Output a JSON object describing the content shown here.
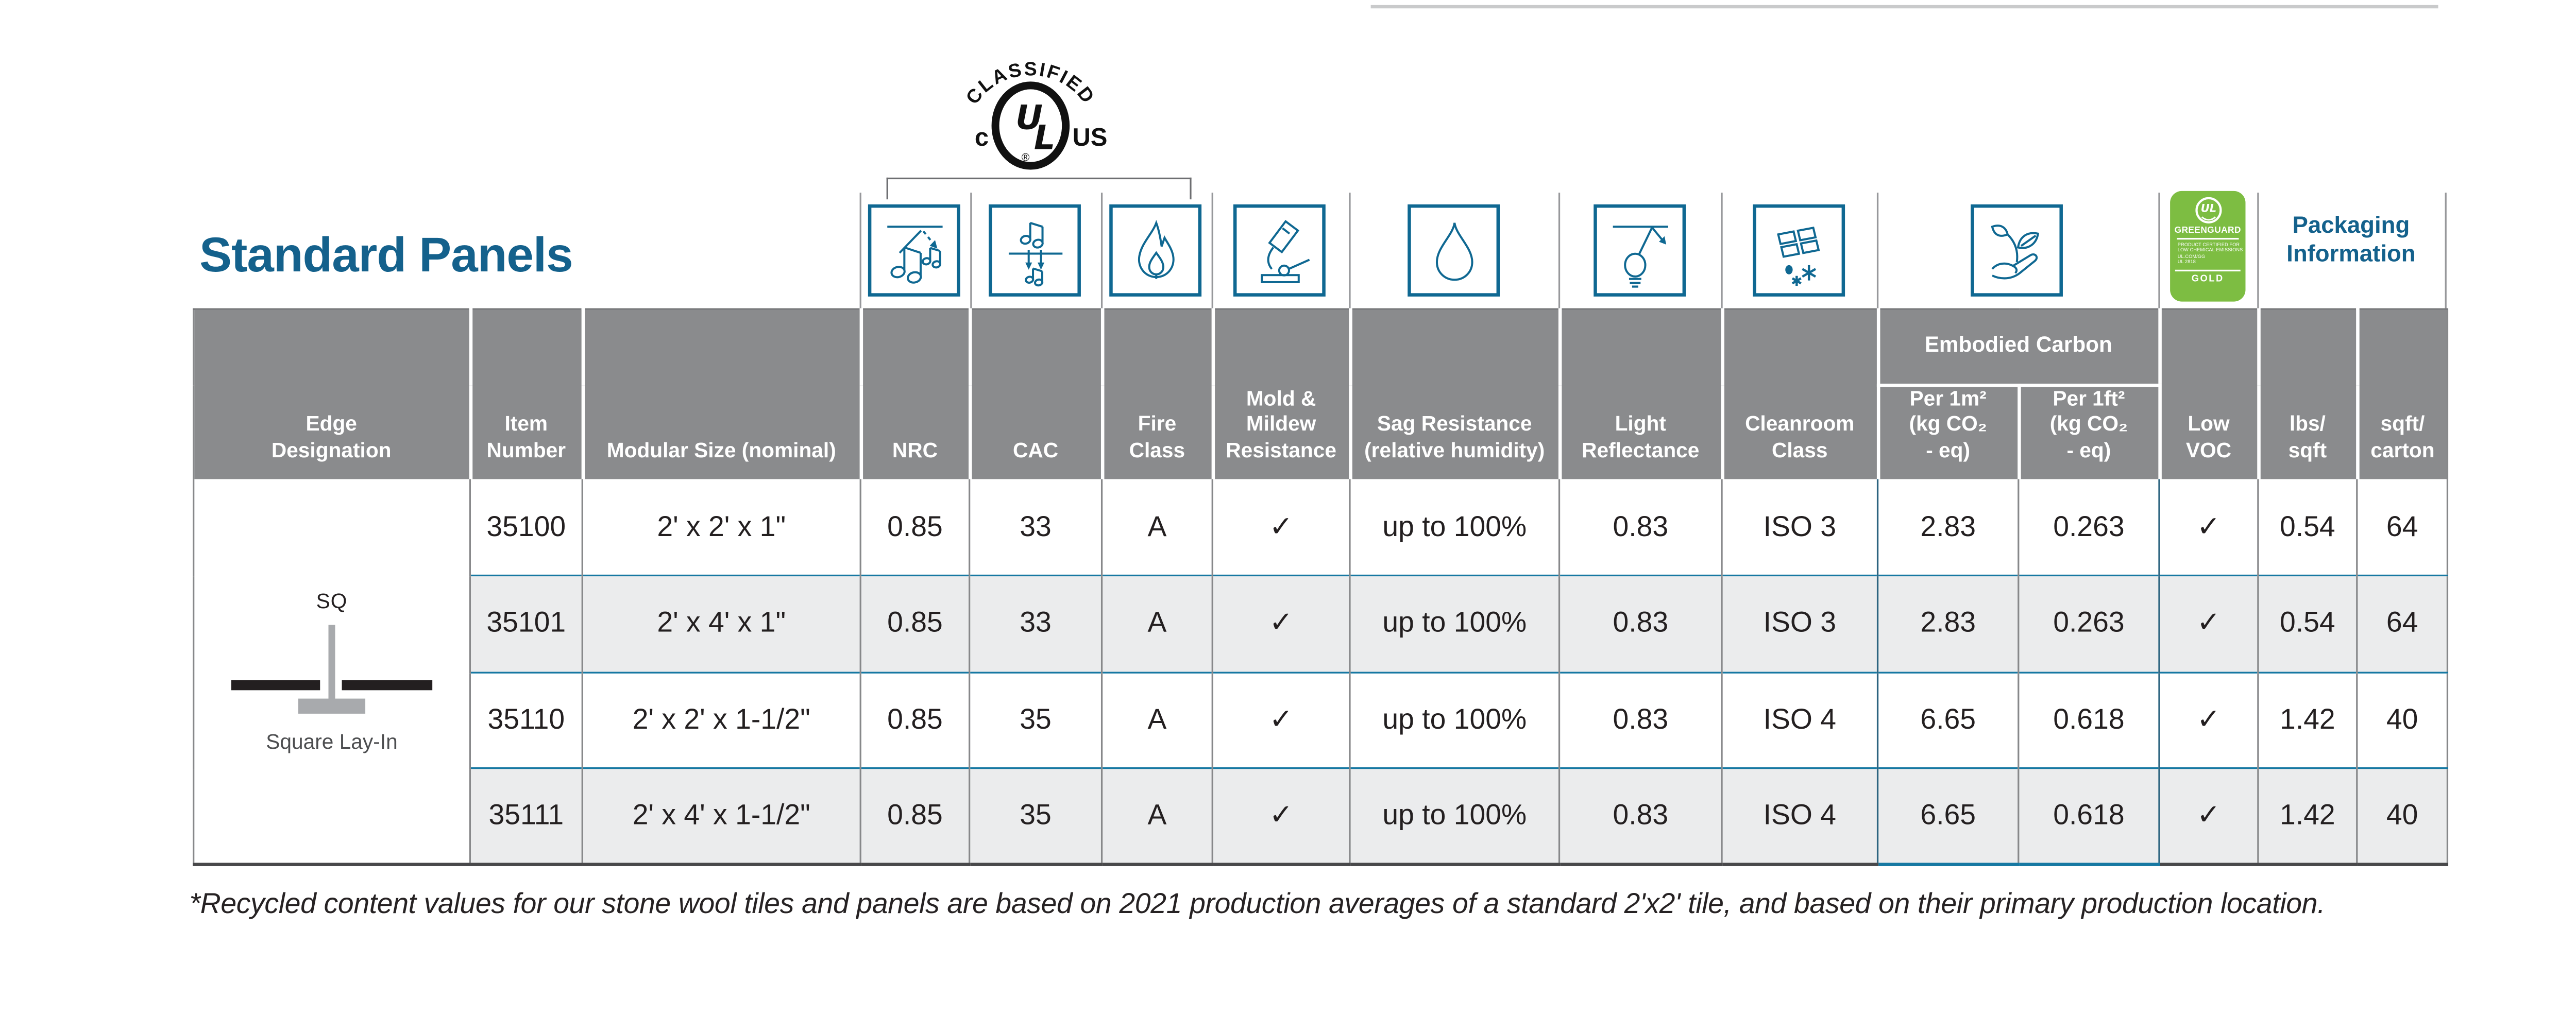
{
  "page": {
    "title": "Standard Panels"
  },
  "colors": {
    "teal": "#0f6892",
    "greenguard_green": "#7dbd42",
    "header_gray": "#8a8b8d",
    "row_alt": "#ebeced",
    "row_separator_teal": "#1678a2",
    "ink": "#231f20"
  },
  "ul_classified": {
    "arc_text": "CLASSIFIED",
    "monogram": "UL",
    "left": "c",
    "right": "US",
    "registered": "®"
  },
  "icons": {
    "nrc": "sound-absorption-icon",
    "cac": "sound-attenuation-icon",
    "fire": "flame-icon",
    "mold": "microscope-icon",
    "sag": "water-droplet-icon",
    "light": "lightbulb-reflection-icon",
    "cleanroom": "ceiling-tiles-particles-icon",
    "embodied": "plant-in-hand-icon",
    "low_voc": "greenguard-gold-badge",
    "certification": "ul-classified-mark"
  },
  "greenguard": {
    "ul": "UL",
    "name": "GREENGUARD",
    "cert": "PRODUCT CERTIFIED FOR\nLOW CHEMICAL EMISSIONS\nUL.COM/GG\nUL 2818",
    "tier": "GOLD"
  },
  "packaging": {
    "line1": "Packaging",
    "line2": "Information"
  },
  "table": {
    "headers": {
      "edge": "Edge\nDesignation",
      "item": "Item\nNumber",
      "size": "Modular Size (nominal)",
      "nrc": "NRC",
      "cac": "CAC",
      "fire": "Fire\nClass",
      "mold": "Mold &\nMildew\nResistance",
      "sag": "Sag Resistance\n(relative humidity)",
      "light": "Light\nReflectance",
      "cleanroom": "Cleanroom\nClass",
      "embodied": "Embodied Carbon",
      "per_m2": "Per 1m²\n(kg CO₂\n- eq)",
      "per_ft2": "Per 1ft²\n(kg CO₂\n- eq)",
      "low_voc": "Low\nVOC",
      "lbs_sqft": "lbs/\nsqft",
      "sqft_carton": "sqft/\ncarton"
    },
    "edge_cell": {
      "code": "SQ",
      "name": "Square Lay-In"
    },
    "rows": [
      {
        "item": "35100",
        "size": "2' x 2' x 1\"",
        "nrc": "0.85",
        "cac": "33",
        "fire": "A",
        "mold": "✓",
        "sag": "up to 100%",
        "light": "0.83",
        "cleanroom": "ISO 3",
        "per_m2": "2.83",
        "per_ft2": "0.263",
        "low_voc": "✓",
        "lbs_sqft": "0.54",
        "sqft_carton": "64"
      },
      {
        "item": "35101",
        "size": "2' x 4' x 1\"",
        "nrc": "0.85",
        "cac": "33",
        "fire": "A",
        "mold": "✓",
        "sag": "up to 100%",
        "light": "0.83",
        "cleanroom": "ISO 3",
        "per_m2": "2.83",
        "per_ft2": "0.263",
        "low_voc": "✓",
        "lbs_sqft": "0.54",
        "sqft_carton": "64"
      },
      {
        "item": "35110",
        "size": "2' x 2' x 1-1/2\"",
        "nrc": "0.85",
        "cac": "35",
        "fire": "A",
        "mold": "✓",
        "sag": "up to 100%",
        "light": "0.83",
        "cleanroom": "ISO 4",
        "per_m2": "6.65",
        "per_ft2": "0.618",
        "low_voc": "✓",
        "lbs_sqft": "1.42",
        "sqft_carton": "40"
      },
      {
        "item": "35111",
        "size": "2' x 4' x 1-1/2\"",
        "nrc": "0.85",
        "cac": "35",
        "fire": "A",
        "mold": "✓",
        "sag": "up to 100%",
        "light": "0.83",
        "cleanroom": "ISO 4",
        "per_m2": "6.65",
        "per_ft2": "0.618",
        "low_voc": "✓",
        "lbs_sqft": "1.42",
        "sqft_carton": "40"
      }
    ]
  },
  "footnote": {
    "text": "*Recycled content values for our stone wool tiles and panels are based on 2021 production averages of a standard 2'x2' tile, and based on their primary production location."
  }
}
